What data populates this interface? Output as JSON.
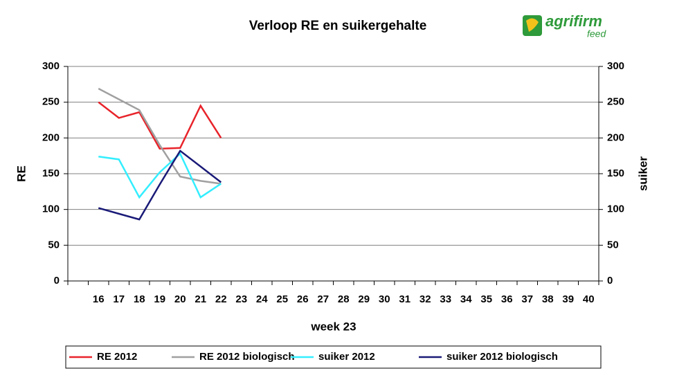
{
  "chart_data": {
    "type": "line",
    "title": "Verloop RE en suikergehalte",
    "logo": {
      "name": "agrifirm",
      "sub": "feed"
    },
    "x_label": "week 23",
    "y_label": "RE",
    "y2_label": "suiker",
    "categories": [
      null,
      "16",
      "17",
      "18",
      "19",
      "20",
      "21",
      "22",
      "23",
      "24",
      "25",
      "26",
      "27",
      "28",
      "29",
      "30",
      "31",
      "32",
      "33",
      "34",
      "35",
      "36",
      "37",
      "38",
      "39",
      "40"
    ],
    "ylim": [
      0,
      300
    ],
    "yticks": [
      0,
      50,
      100,
      150,
      200,
      250,
      300
    ],
    "y2lim": [
      0,
      300
    ],
    "y2ticks": [
      0,
      50,
      100,
      150,
      200,
      250,
      300
    ],
    "grid": true,
    "legend": "bottom",
    "series": [
      {
        "name": "RE 2012",
        "color": "#e8232a",
        "values": [
          null,
          250,
          228,
          236,
          185,
          186,
          245,
          200,
          null,
          null,
          null,
          null,
          null,
          null,
          null,
          null,
          null,
          null,
          null,
          null,
          null,
          null,
          null,
          null,
          null,
          null
        ]
      },
      {
        "name": "RE 2012 biologisch",
        "color": "#a0a0a0",
        "values": [
          null,
          269,
          254,
          239,
          190,
          146,
          140,
          136,
          null,
          null,
          null,
          null,
          null,
          null,
          null,
          null,
          null,
          null,
          null,
          null,
          null,
          null,
          null,
          null,
          null,
          null
        ]
      },
      {
        "name": "suiker 2012",
        "color": "#33eeff",
        "axis": "y2",
        "values": [
          null,
          174,
          170,
          117,
          152,
          178,
          117,
          136,
          null,
          null,
          null,
          null,
          null,
          null,
          null,
          null,
          null,
          null,
          null,
          null,
          null,
          null,
          null,
          null,
          null,
          null
        ]
      },
      {
        "name": "suiker 2012 biologisch",
        "color": "#1a1a78",
        "axis": "y2",
        "values": [
          null,
          102,
          94,
          86,
          135,
          182,
          160,
          138,
          null,
          null,
          null,
          null,
          null,
          null,
          null,
          null,
          null,
          null,
          null,
          null,
          null,
          null,
          null,
          null,
          null,
          null
        ]
      }
    ]
  }
}
